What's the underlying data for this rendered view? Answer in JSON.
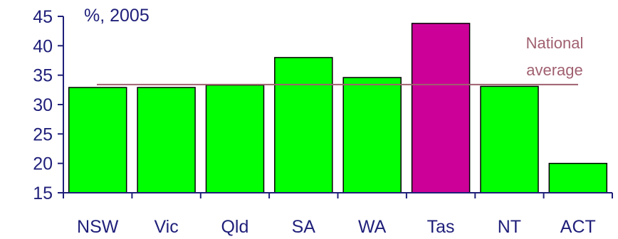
{
  "chart_data": {
    "type": "bar",
    "title": "",
    "unit_label": "%, 2005",
    "categories": [
      "NSW",
      "Vic",
      "Qld",
      "SA",
      "WA",
      "Tas",
      "NT",
      "ACT"
    ],
    "values": [
      32.9,
      32.9,
      33.3,
      38.0,
      34.6,
      43.8,
      33.1,
      20.0
    ],
    "bar_colors": [
      "#00ff00",
      "#00ff00",
      "#00ff00",
      "#00ff00",
      "#00ff00",
      "#cc0099",
      "#00ff00",
      "#00ff00"
    ],
    "ylim": [
      15,
      45
    ],
    "yticks": [
      15,
      20,
      25,
      30,
      35,
      40,
      45
    ],
    "reference_line": {
      "value": 33.4,
      "label_line1": "National",
      "label_line2": "average",
      "color": "#a06070"
    },
    "text_color": "#1f1f7a",
    "grid": false
  }
}
